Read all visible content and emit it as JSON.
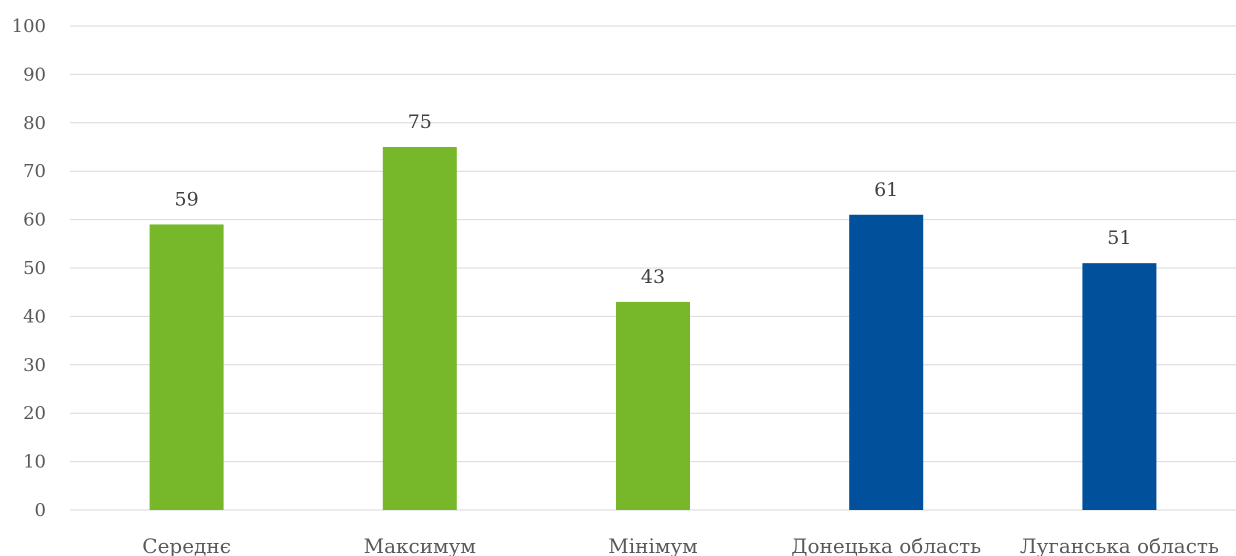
{
  "chart_data": {
    "type": "bar",
    "categories": [
      "Середнє",
      "Максимум",
      "Мінімум",
      "Донецька область",
      "Луганська область"
    ],
    "values": [
      59,
      75,
      43,
      61,
      51
    ],
    "bar_colors": [
      "#76b82a",
      "#76b82a",
      "#76b82a",
      "#00509b",
      "#00509b"
    ],
    "ylim": [
      0,
      100
    ],
    "yticks": [
      0,
      10,
      20,
      30,
      40,
      50,
      60,
      70,
      80,
      90,
      100
    ],
    "grid": true,
    "data_labels": true,
    "title": "",
    "xlabel": "",
    "ylabel": ""
  }
}
